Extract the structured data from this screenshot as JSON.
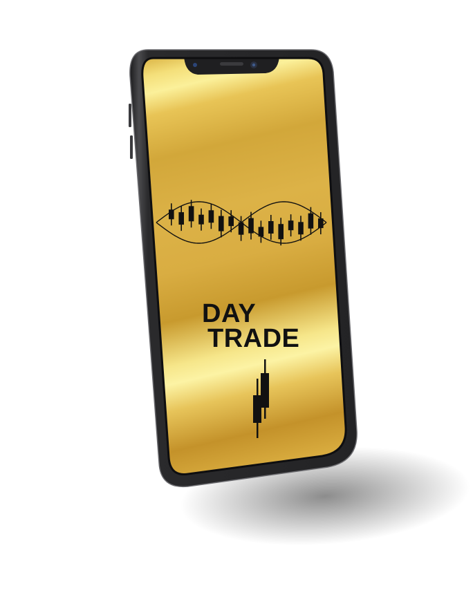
{
  "screen": {
    "title_line1": "DAY",
    "title_line2": "TRADE"
  },
  "colors": {
    "gold_dark": "#b98a1f",
    "gold_mid": "#d7ad3c",
    "gold_light": "#fbef96",
    "phone_body": "#2d2d2f",
    "ink": "#111111"
  },
  "icons": {
    "wave_chart": "candlestick-wave-icon",
    "bottom_chart": "candlestick-pair-icon"
  }
}
